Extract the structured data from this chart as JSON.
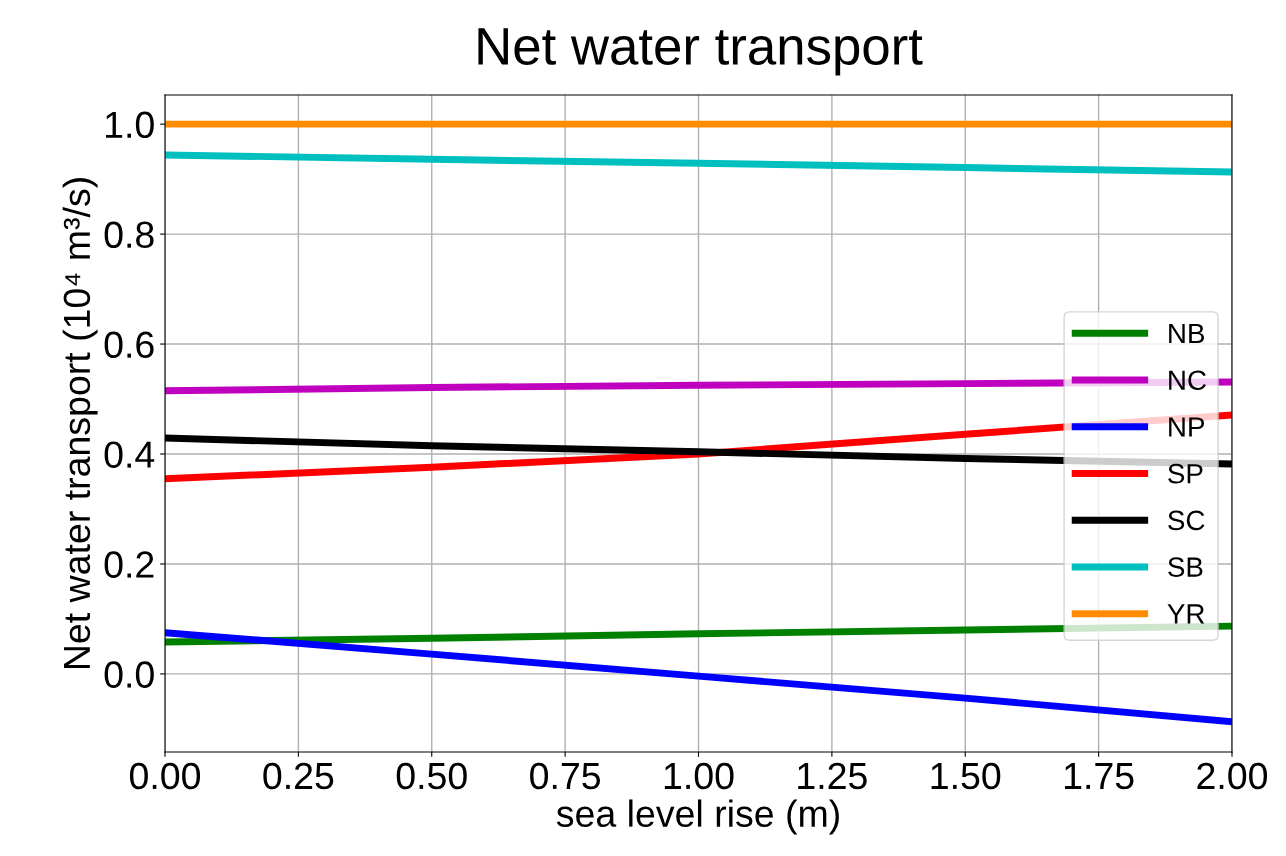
{
  "chart_data": {
    "type": "line",
    "title": "Net water transport",
    "xlabel": "sea level rise (m)",
    "ylabel": "Net water transport (10⁴ m³/s)",
    "x": [
      0,
      0.5,
      1.0,
      1.5,
      2.0
    ],
    "series": [
      {
        "name": "NB",
        "color": "#008000",
        "values": [
          0.058,
          0.065,
          0.073,
          0.08,
          0.087
        ]
      },
      {
        "name": "NC",
        "color": "#bf00bf",
        "values": [
          0.515,
          0.521,
          0.525,
          0.528,
          0.531
        ]
      },
      {
        "name": "NP",
        "color": "#0000ff",
        "values": [
          0.075,
          0.036,
          -0.004,
          -0.044,
          -0.087
        ]
      },
      {
        "name": "SP",
        "color": "#ff0000",
        "values": [
          0.355,
          0.376,
          0.4,
          0.436,
          0.471
        ]
      },
      {
        "name": "SC",
        "color": "#000000",
        "values": [
          0.429,
          0.415,
          0.404,
          0.392,
          0.382
        ]
      },
      {
        "name": "SB",
        "color": "#00bfbf",
        "values": [
          0.944,
          0.936,
          0.929,
          0.921,
          0.913
        ]
      },
      {
        "name": "YR",
        "color": "#ff8c00",
        "values": [
          1.0,
          1.0,
          1.0,
          1.0,
          1.0
        ]
      }
    ],
    "xlim": [
      0,
      2.0
    ],
    "xticks": [
      {
        "value": 0,
        "label": "0.00"
      },
      {
        "value": 0.25,
        "label": "0.25"
      },
      {
        "value": 0.5,
        "label": "0.50"
      },
      {
        "value": 0.75,
        "label": "0.75"
      },
      {
        "value": 1.0,
        "label": "1.00"
      },
      {
        "value": 1.25,
        "label": "1.25"
      },
      {
        "value": 1.5,
        "label": "1.50"
      },
      {
        "value": 1.75,
        "label": "1.75"
      },
      {
        "value": 2.0,
        "label": "2.00"
      }
    ],
    "ylim": [
      -0.142,
      1.053
    ],
    "yticks": [
      {
        "value": 0,
        "label": "0.0"
      },
      {
        "value": 0.2,
        "label": "0.2"
      },
      {
        "value": 0.4,
        "label": "0.4"
      },
      {
        "value": 0.6,
        "label": "0.6"
      },
      {
        "value": 0.8,
        "label": "0.8"
      },
      {
        "value": 1.0,
        "label": "1.0"
      }
    ],
    "grid": true,
    "legend": "right",
    "marker": "none",
    "line_style": "solid"
  }
}
